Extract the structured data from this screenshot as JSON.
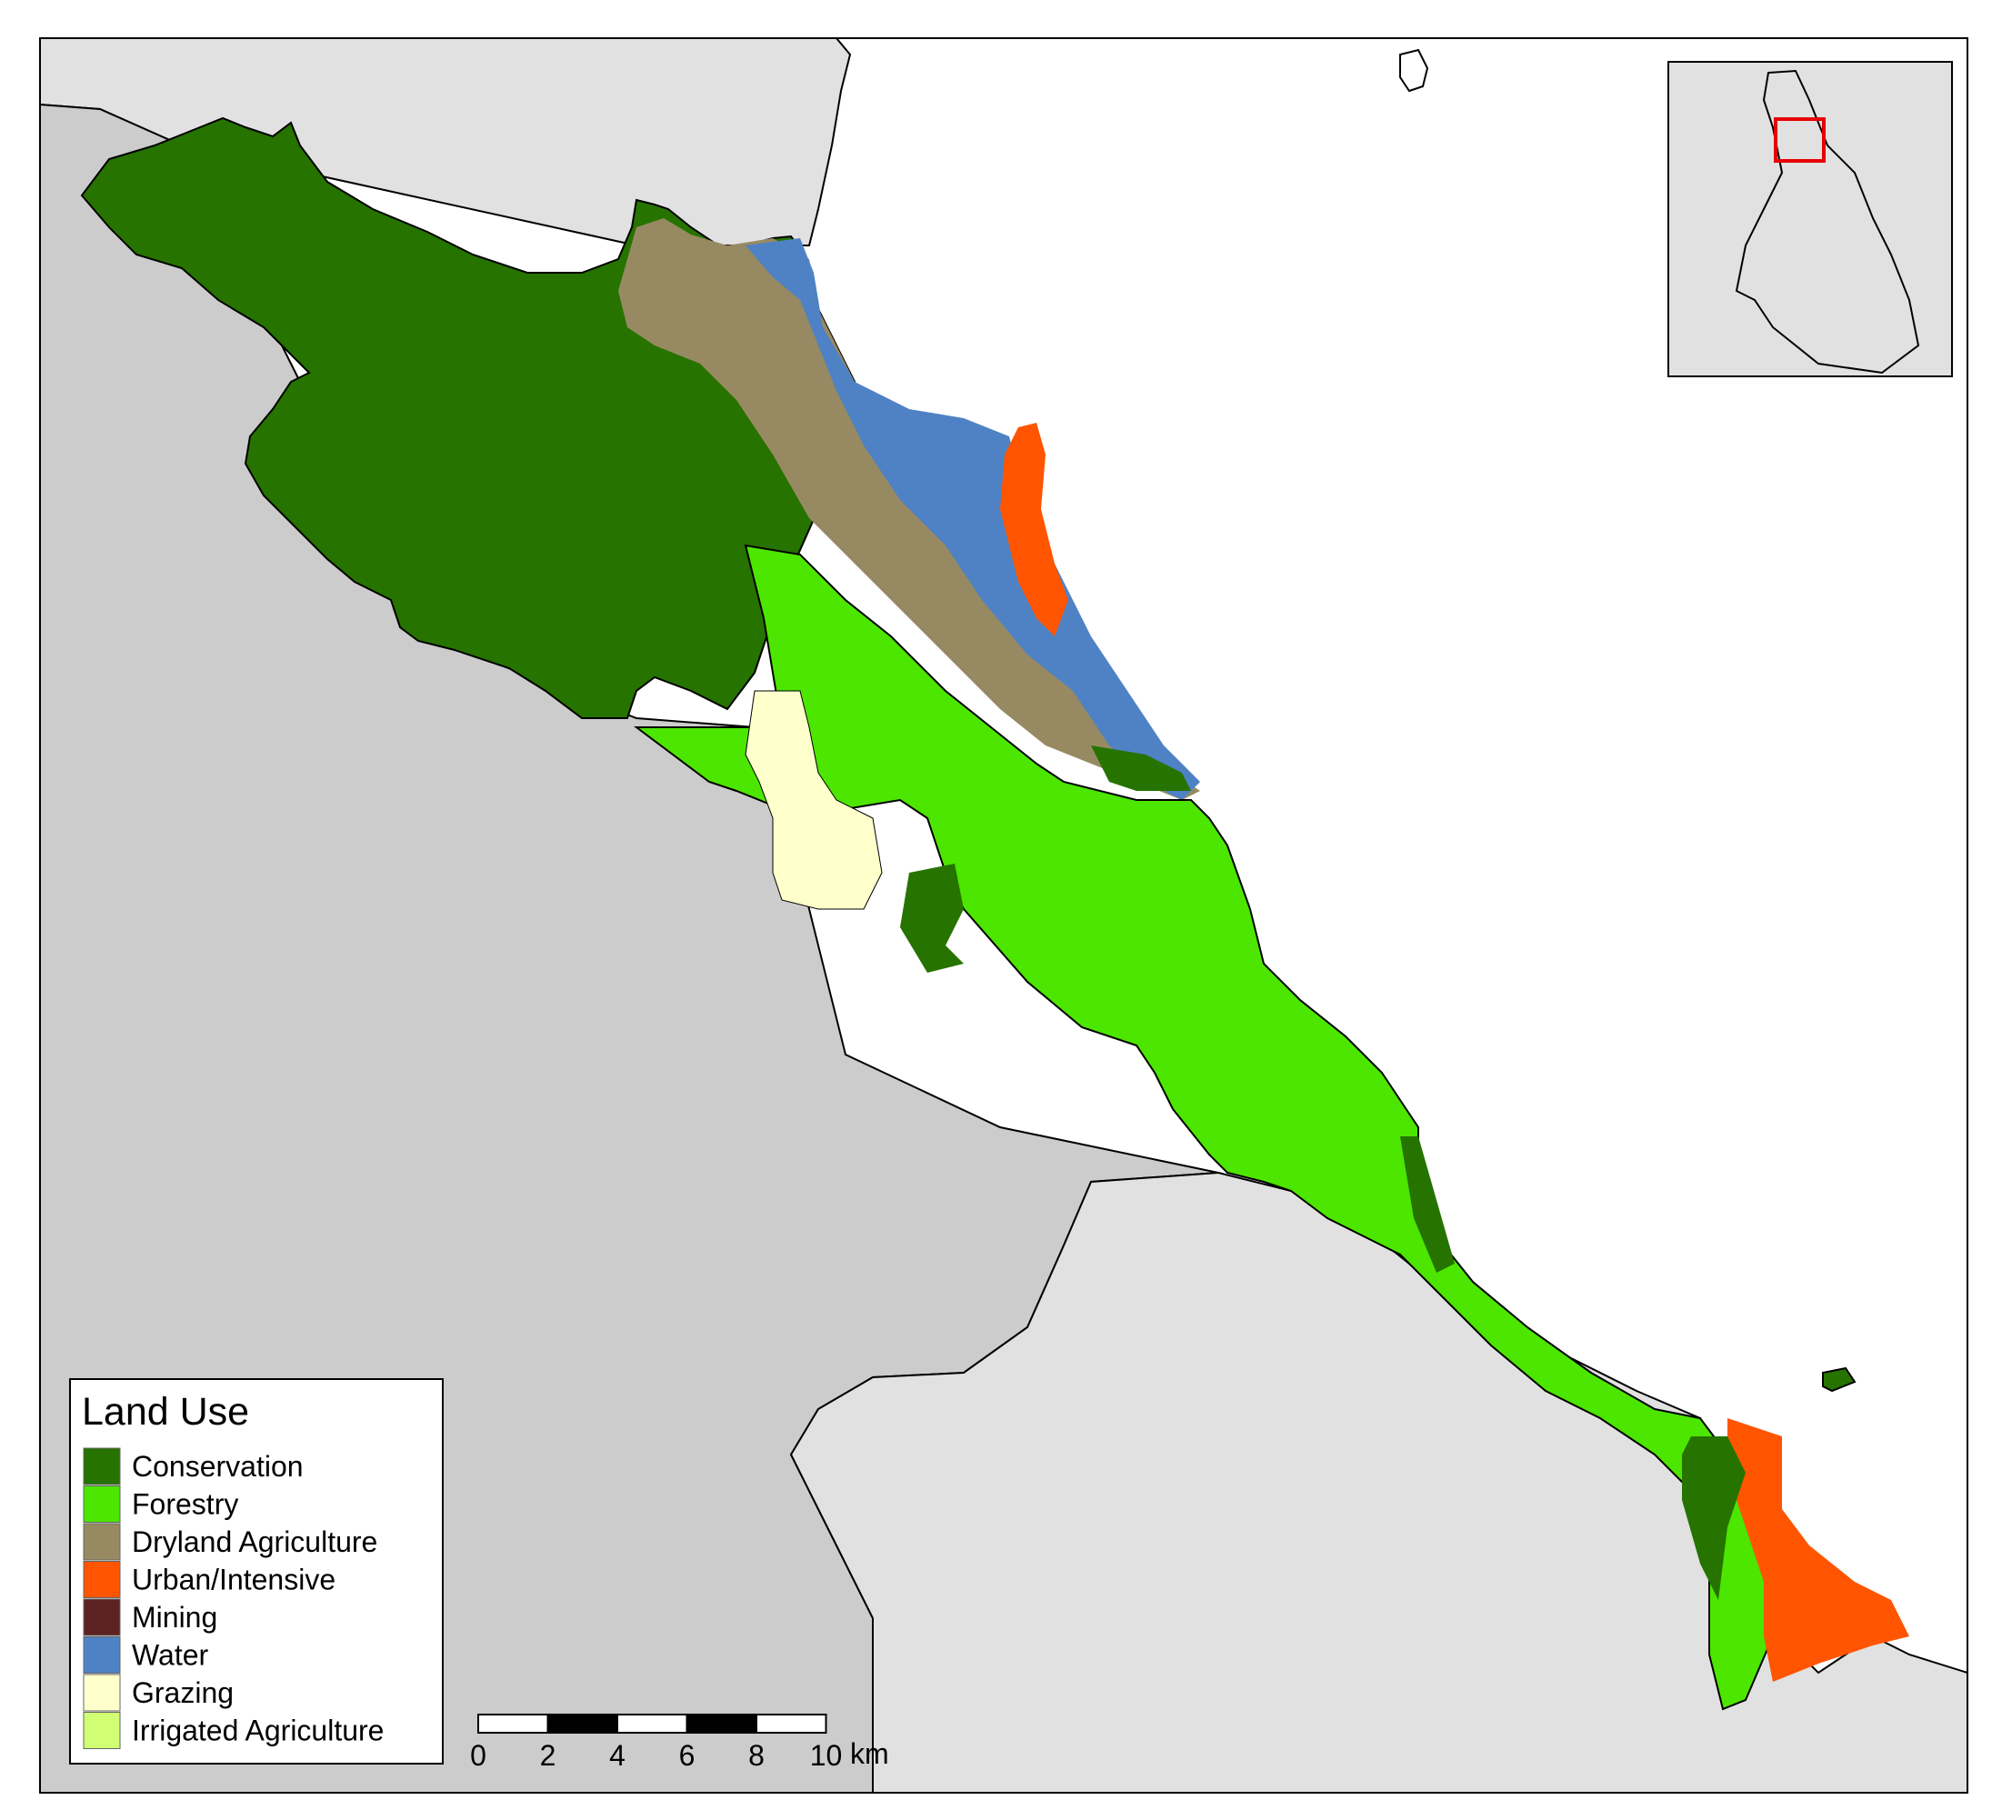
{
  "legend": {
    "title": "Land Use",
    "items": [
      {
        "label": "Conservation",
        "color": "#267300"
      },
      {
        "label": "Forestry",
        "color": "#4ce600"
      },
      {
        "label": "Dryland Agriculture",
        "color": "#978a62"
      },
      {
        "label": "Urban/Intensive",
        "color": "#ff5500"
      },
      {
        "label": "Mining",
        "color": "#5c2222"
      },
      {
        "label": "Water",
        "color": "#4e82c4"
      },
      {
        "label": "Grazing",
        "color": "#ffffcc"
      },
      {
        "label": "Irrigated Agriculture",
        "color": "#d1ff73"
      }
    ]
  },
  "scale_bar": {
    "ticks": [
      "0",
      "2",
      "4",
      "6",
      "8",
      "10"
    ],
    "unit": "km"
  },
  "colors": {
    "land_light": "#e1e1e1",
    "land_dark": "#cccccc",
    "sea": "#ffffff",
    "inset_highlight": "#e60000"
  }
}
